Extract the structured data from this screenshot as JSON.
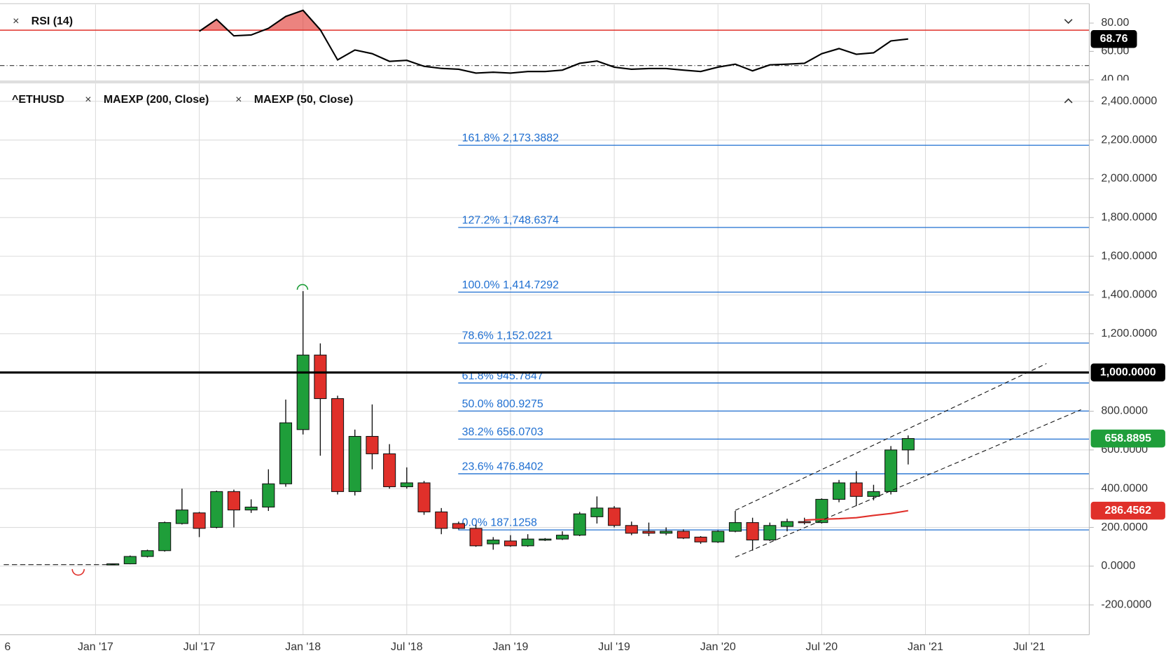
{
  "chart_data": [
    {
      "type": "line",
      "xlim": [
        "2016-07",
        "2021-10"
      ],
      "ylim": [
        39.5,
        92.1
      ],
      "yticks": [
        {
          "value": 80,
          "label": "80.00"
        },
        {
          "value": 60,
          "label": "60.00"
        },
        {
          "value": 40,
          "label": "40.00"
        }
      ],
      "overbought": 75,
      "overbought_color": "#e0302a",
      "midline": 50,
      "x": [
        "2017-07",
        "2017-08",
        "2017-09",
        "2017-10",
        "2017-11",
        "2017-12",
        "2018-01",
        "2018-02",
        "2018-03",
        "2018-04",
        "2018-05",
        "2018-06",
        "2018-07",
        "2018-08",
        "2018-09",
        "2018-10",
        "2018-11",
        "2018-12",
        "2019-01",
        "2019-02",
        "2019-03",
        "2019-04",
        "2019-05",
        "2019-06",
        "2019-07",
        "2019-08",
        "2019-09",
        "2019-10",
        "2019-11",
        "2019-12",
        "2020-01",
        "2020-02",
        "2020-03",
        "2020-04",
        "2020-05",
        "2020-06",
        "2020-07",
        "2020-08",
        "2020-09",
        "2020-10",
        "2020-11",
        "2020-12"
      ],
      "series": [
        {
          "name": "RSI (14)",
          "color": "#000000",
          "values": [
            74.2,
            82.6,
            71,
            71.6,
            76.3,
            84.7,
            89,
            75.3,
            54,
            61,
            58.4,
            53,
            53.7,
            49.5,
            48,
            47.4,
            44.7,
            45.3,
            44.7,
            45.8,
            45.8,
            46.8,
            51.6,
            53.2,
            48.9,
            47.4,
            47.9,
            47.9,
            46.8,
            45.8,
            48.9,
            51,
            46.3,
            50.5,
            51,
            51.6,
            58.4,
            62,
            58,
            59,
            67.4,
            68.76
          ]
        }
      ]
    },
    {
      "type": "candlestick",
      "name": "^ETHUSD",
      "legend": [
        "MAEXP (200, Close)",
        "MAEXP (50, Close)"
      ],
      "xlim": [
        "2016-07",
        "2021-10"
      ],
      "ylim": [
        -353.8,
        2492.3
      ],
      "yticks": [
        {
          "value": 2400,
          "label": "2,400.0000"
        },
        {
          "value": 2200,
          "label": "2,200.0000"
        },
        {
          "value": 2000,
          "label": "2,000.0000"
        },
        {
          "value": 1800,
          "label": "1,800.0000"
        },
        {
          "value": 1600,
          "label": "1,600.0000"
        },
        {
          "value": 1400,
          "label": "1,400.0000"
        },
        {
          "value": 1200,
          "label": "1,200.0000"
        },
        {
          "value": 800,
          "label": "800.0000"
        },
        {
          "value": 600,
          "label": "600.0000"
        },
        {
          "value": 400,
          "label": "400.0000"
        },
        {
          "value": 200,
          "label": "200.0000"
        },
        {
          "value": 0,
          "label": "0.0000"
        },
        {
          "value": -200,
          "label": "-200.0000"
        }
      ],
      "xticks": [
        {
          "value": "2016-07",
          "label": "6"
        },
        {
          "value": "2017-01",
          "label": "Jan '17"
        },
        {
          "value": "2017-07",
          "label": "Jul '17"
        },
        {
          "value": "2018-01",
          "label": "Jan '18"
        },
        {
          "value": "2018-07",
          "label": "Jul '18"
        },
        {
          "value": "2019-01",
          "label": "Jan '19"
        },
        {
          "value": "2019-07",
          "label": "Jul '19"
        },
        {
          "value": "2020-01",
          "label": "Jan '20"
        },
        {
          "value": "2020-07",
          "label": "Jul '20"
        },
        {
          "value": "2021-01",
          "label": "Jan '21"
        },
        {
          "value": "2021-07",
          "label": "Jul '21"
        }
      ],
      "up_color": "#1f9e3a",
      "down_color": "#e0302a",
      "x": [
        "2017-02",
        "2017-03",
        "2017-04",
        "2017-05",
        "2017-06",
        "2017-07",
        "2017-08",
        "2017-09",
        "2017-10",
        "2017-11",
        "2017-12",
        "2018-01",
        "2018-02",
        "2018-03",
        "2018-04",
        "2018-05",
        "2018-06",
        "2018-07",
        "2018-08",
        "2018-09",
        "2018-10",
        "2018-11",
        "2018-12",
        "2019-01",
        "2019-02",
        "2019-03",
        "2019-04",
        "2019-05",
        "2019-06",
        "2019-07",
        "2019-08",
        "2019-09",
        "2019-10",
        "2019-11",
        "2019-12",
        "2020-01",
        "2020-02",
        "2020-03",
        "2020-04",
        "2020-05",
        "2020-06",
        "2020-07",
        "2020-08",
        "2020-09",
        "2020-10",
        "2020-11",
        "2020-12"
      ],
      "open": [
        10,
        12,
        50,
        80,
        220,
        275,
        200,
        385,
        290,
        305,
        425,
        705,
        1090,
        865,
        385,
        670,
        580,
        410,
        430,
        280,
        220,
        195,
        115,
        130,
        105,
        135,
        140,
        160,
        255,
        300,
        210,
        180,
        170,
        180,
        150,
        125,
        180,
        225,
        135,
        205,
        230,
        225,
        345,
        430,
        360,
        385,
        600
      ],
      "high": [
        14,
        55,
        85,
        230,
        400,
        280,
        390,
        395,
        345,
        500,
        860,
        1420,
        1150,
        880,
        705,
        835,
        630,
        510,
        440,
        300,
        230,
        215,
        150,
        160,
        165,
        145,
        180,
        280,
        360,
        310,
        230,
        225,
        200,
        190,
        155,
        185,
        285,
        250,
        225,
        245,
        250,
        350,
        445,
        490,
        420,
        620,
        675
      ],
      "low": [
        8,
        10,
        45,
        75,
        215,
        150,
        195,
        200,
        275,
        285,
        410,
        680,
        570,
        370,
        365,
        500,
        400,
        400,
        265,
        165,
        190,
        100,
        85,
        100,
        100,
        130,
        135,
        155,
        220,
        200,
        160,
        155,
        160,
        140,
        115,
        120,
        175,
        80,
        130,
        180,
        215,
        220,
        330,
        310,
        340,
        370,
        525
      ],
      "close": [
        12,
        50,
        80,
        225,
        290,
        195,
        385,
        290,
        305,
        425,
        740,
        1090,
        865,
        385,
        670,
        580,
        410,
        430,
        280,
        195,
        195,
        105,
        135,
        105,
        140,
        140,
        160,
        270,
        300,
        210,
        170,
        170,
        180,
        145,
        125,
        180,
        225,
        135,
        210,
        230,
        225,
        345,
        430,
        360,
        385,
        600,
        658.8895
      ],
      "ma": {
        "color": "#e0302a",
        "x": [
          "2020-06",
          "2020-07",
          "2020-08",
          "2020-09",
          "2020-10",
          "2020-11",
          "2020-12"
        ],
        "values": [
          238,
          242,
          245,
          250,
          262,
          272,
          286.4562
        ]
      },
      "fib_color": "#1f6fd1",
      "fib": [
        {
          "value": 2173.3882,
          "label": "161.8% 2,173.3882"
        },
        {
          "value": 1748.6374,
          "label": "127.2% 1,748.6374"
        },
        {
          "value": 1414.7292,
          "label": "100.0% 1,414.7292"
        },
        {
          "value": 1152.0221,
          "label": "78.6% 1,152.0221"
        },
        {
          "value": 945.7847,
          "label": "61.8% 945.7847"
        },
        {
          "value": 800.9275,
          "label": "50.0% 800.9275"
        },
        {
          "value": 656.0703,
          "label": "38.2% 656.0703"
        },
        {
          "value": 476.8402,
          "label": "23.6% 476.8402"
        },
        {
          "value": 187.1258,
          "label": "0.0% 187.1258"
        }
      ],
      "hline": {
        "value": 1000,
        "label": "1,000.0000"
      },
      "trendlines": [
        {
          "x": [
            "2020-02",
            "2021-08"
          ],
          "values": [
            288,
            1046
          ]
        },
        {
          "x": [
            "2020-02",
            "2021-10"
          ],
          "values": [
            46,
            808
          ]
        }
      ]
    }
  ]
}
